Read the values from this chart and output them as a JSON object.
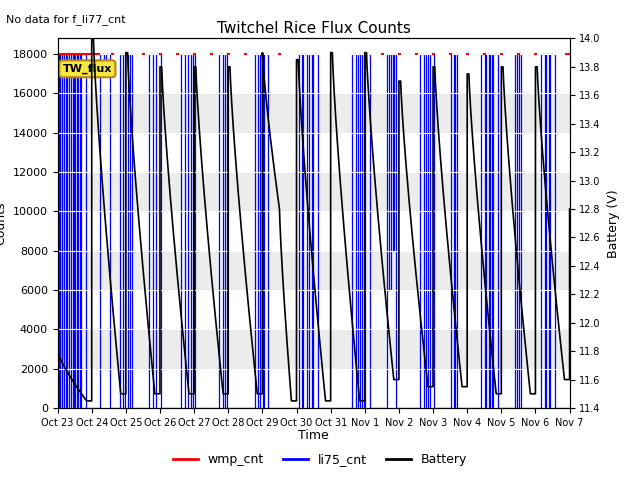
{
  "title": "Twitchel Rice Flux Counts",
  "subtitle": "No data for f_li77_cnt",
  "xlabel": "Time",
  "ylabel_left": "Counts",
  "ylabel_right": "Battery (V)",
  "annotation": "TW_flux",
  "x_tick_labels": [
    "Oct 23",
    "Oct 24",
    "Oct 25",
    "Oct 26",
    "Oct 27",
    "Oct 28",
    "Oct 29",
    "Oct 30",
    "Oct 31",
    "Nov 1",
    "Nov 2",
    "Nov 3",
    "Nov 4",
    "Nov 5",
    "Nov 6",
    "Nov 7"
  ],
  "ylim_left": [
    0,
    18800
  ],
  "ylim_right": [
    11.4,
    14.0
  ],
  "yticks_left": [
    0,
    2000,
    4000,
    6000,
    8000,
    10000,
    12000,
    14000,
    16000,
    18000
  ],
  "yticks_right": [
    11.4,
    11.6,
    11.8,
    12.0,
    12.2,
    12.4,
    12.6,
    12.8,
    13.0,
    13.2,
    13.4,
    13.6,
    13.8,
    14.0
  ],
  "wmp_color": "#ff0000",
  "li75_color": "#0000ff",
  "battery_color": "#000000",
  "background_shading": "#e0e0e0",
  "legend_entries": [
    "wmp_cnt",
    "li75_cnt",
    "Battery"
  ],
  "n_days": 15,
  "figsize": [
    6.4,
    4.8
  ],
  "dpi": 100
}
